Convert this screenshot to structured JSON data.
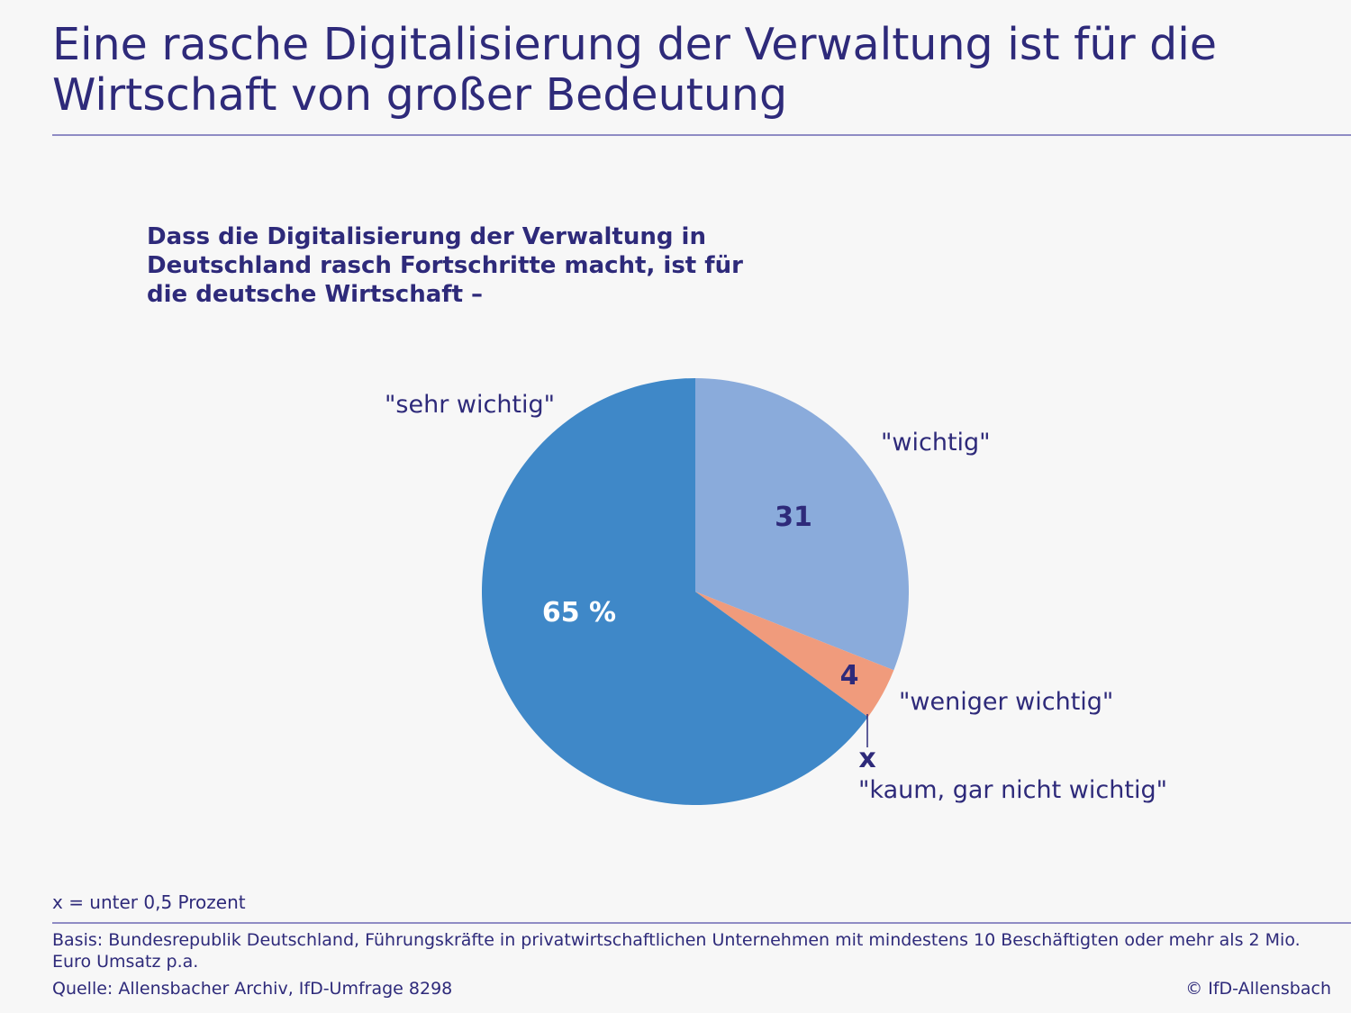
{
  "title": "Eine rasche Digitalisierung der Verwaltung ist für die Wirtschaft von großer Bedeutung",
  "question": "Dass die Digitalisierung der Verwaltung in Deutschland rasch Fortschritte macht, ist für die deutsche Wirtschaft –",
  "chart_data": {
    "type": "pie",
    "title": "Dass die Digitalisierung der Verwaltung in Deutschland rasch Fortschritte macht, ist für die deutsche Wirtschaft –",
    "unit": "%",
    "categories": [
      "\"wichtig\"",
      "\"weniger wichtig\"",
      "\"kaum, gar nicht wichtig\"",
      "\"sehr wichtig\""
    ],
    "values": [
      31,
      4,
      0,
      65
    ],
    "value_labels": [
      "31",
      "4",
      "x",
      "65 %"
    ],
    "colors": [
      "#8aabdb",
      "#f09b7c",
      "#2e2a7a",
      "#3f88c8"
    ],
    "start_angle_deg": 0,
    "direction": "clockwise"
  },
  "footnote": "x = unter 0,5 Prozent",
  "basis": "Basis: Bundesrepublik Deutschland, Führungskräfte in privatwirtschaftlichen Unternehmen mit mindestens 10 Beschäftigten oder mehr als 2 Mio. Euro Umsatz p.a.",
  "source": "Quelle: Allensbacher Archiv, IfD-Umfrage 8298",
  "copyright": "© IfD-Allensbach"
}
